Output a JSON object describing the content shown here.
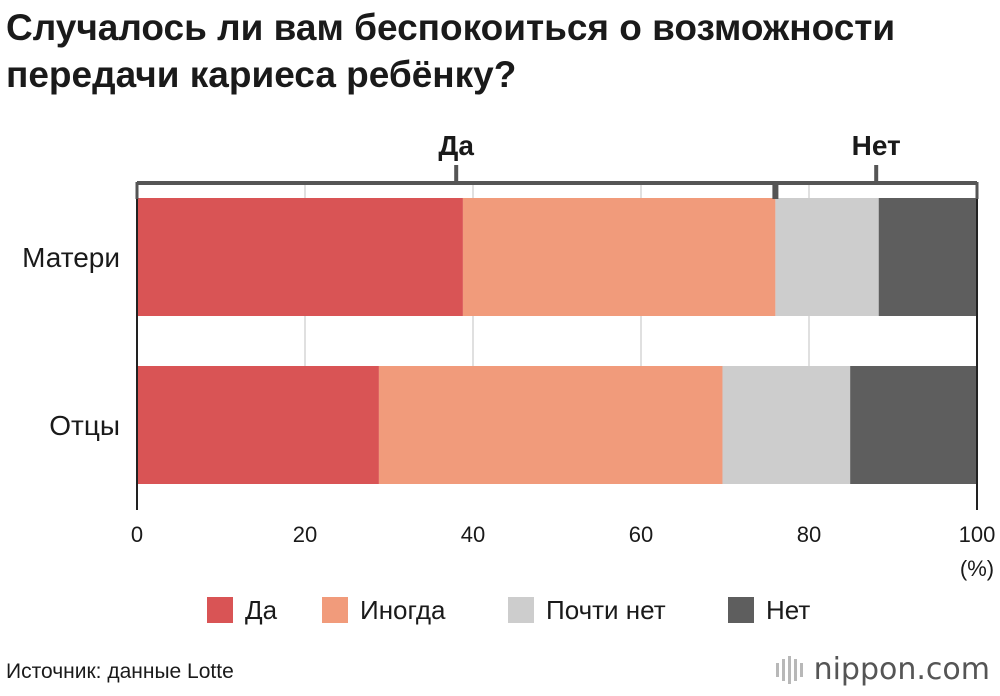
{
  "title": {
    "line1": "Случалось ли вам беспокоиться о возможности",
    "line2": "передачи кариеса ребёнку?"
  },
  "chart_data": {
    "type": "bar",
    "orientation": "horizontal",
    "stacked": true,
    "categories": [
      "Матери",
      "Отцы"
    ],
    "series": [
      {
        "name": "Да",
        "color": "#d95455",
        "values": [
          38.8,
          28.8
        ]
      },
      {
        "name": "Иногда",
        "color": "#f19b7b",
        "values": [
          37.2,
          40.9
        ]
      },
      {
        "name": "Почти нет",
        "color": "#cdcdcd",
        "values": [
          12.3,
          15.2
        ]
      },
      {
        "name": "Нет",
        "color": "#5e5e5e",
        "values": [
          11.7,
          15.1
        ]
      }
    ],
    "xlim": [
      0,
      100
    ],
    "x_ticks": [
      "0",
      "20",
      "40",
      "60",
      "80",
      "100"
    ],
    "x_unit": "(%)",
    "grid": true,
    "legend_position": "bottom",
    "brackets": [
      {
        "label": "Да",
        "from": 0,
        "to": 76
      },
      {
        "label": "Нет",
        "from": 76,
        "to": 100
      }
    ]
  },
  "footer": {
    "source": "Источник: данные Lotte",
    "brand": "nippon.com"
  }
}
